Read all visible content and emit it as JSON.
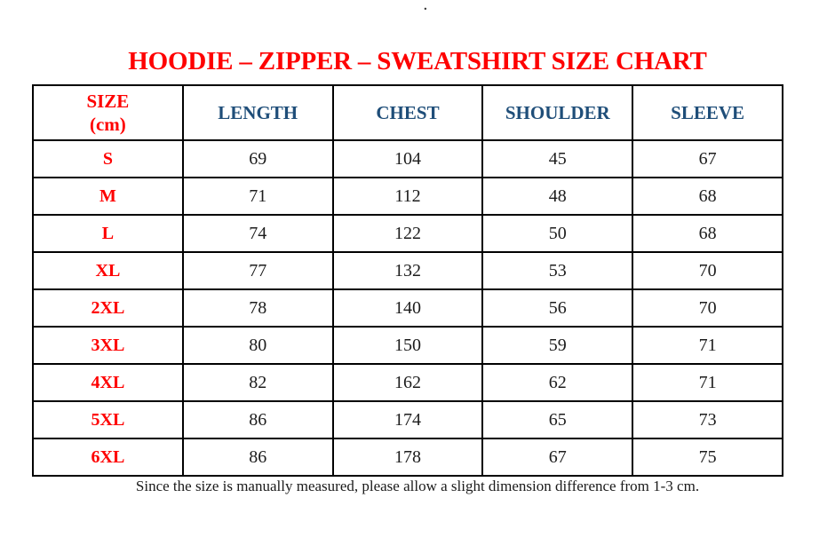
{
  "artifact": {
    "dot": "."
  },
  "title": "HOODIE – ZIPPER – SWEATSHIRT SIZE CHART",
  "note": "Since the size is manually measured, please allow a slight dimension difference from 1-3 cm.",
  "colors": {
    "red": "#fe0000",
    "blue": "#1f4e79",
    "text": "#1c1c1c",
    "border": "#000000",
    "background": "#ffffff"
  },
  "table": {
    "header": {
      "size_line1": "SIZE",
      "size_line2": "(cm)",
      "length": "LENGTH",
      "chest": "CHEST",
      "shoulder": "SHOULDER",
      "sleeve": "SLEEVE"
    },
    "rows": [
      {
        "size": "S",
        "length": "69",
        "chest": "104",
        "shoulder": "45",
        "sleeve": "67"
      },
      {
        "size": "M",
        "length": "71",
        "chest": "112",
        "shoulder": "48",
        "sleeve": "68"
      },
      {
        "size": "L",
        "length": "74",
        "chest": "122",
        "shoulder": "50",
        "sleeve": "68"
      },
      {
        "size": "XL",
        "length": "77",
        "chest": "132",
        "shoulder": "53",
        "sleeve": "70"
      },
      {
        "size": "2XL",
        "length": "78",
        "chest": "140",
        "shoulder": "56",
        "sleeve": "70"
      },
      {
        "size": "3XL",
        "length": "80",
        "chest": "150",
        "shoulder": "59",
        "sleeve": "71"
      },
      {
        "size": "4XL",
        "length": "82",
        "chest": "162",
        "shoulder": "62",
        "sleeve": "71"
      },
      {
        "size": "5XL",
        "length": "86",
        "chest": "174",
        "shoulder": "65",
        "sleeve": "73"
      },
      {
        "size": "6XL",
        "length": "86",
        "chest": "178",
        "shoulder": "67",
        "sleeve": "75"
      }
    ]
  },
  "chart_data": {
    "type": "table",
    "title": "HOODIE – ZIPPER – SWEATSHIRT SIZE CHART",
    "columns": [
      "SIZE (cm)",
      "LENGTH",
      "CHEST",
      "SHOULDER",
      "SLEEVE"
    ],
    "rows": [
      [
        "S",
        69,
        104,
        45,
        67
      ],
      [
        "M",
        71,
        112,
        48,
        68
      ],
      [
        "L",
        74,
        122,
        50,
        68
      ],
      [
        "XL",
        77,
        132,
        53,
        70
      ],
      [
        "2XL",
        78,
        140,
        56,
        70
      ],
      [
        "3XL",
        80,
        150,
        59,
        71
      ],
      [
        "4XL",
        82,
        162,
        62,
        71
      ],
      [
        "5XL",
        86,
        174,
        65,
        73
      ],
      [
        "6XL",
        86,
        178,
        67,
        75
      ]
    ],
    "note": "Since the size is manually measured, please allow a slight dimension difference from 1-3 cm."
  }
}
